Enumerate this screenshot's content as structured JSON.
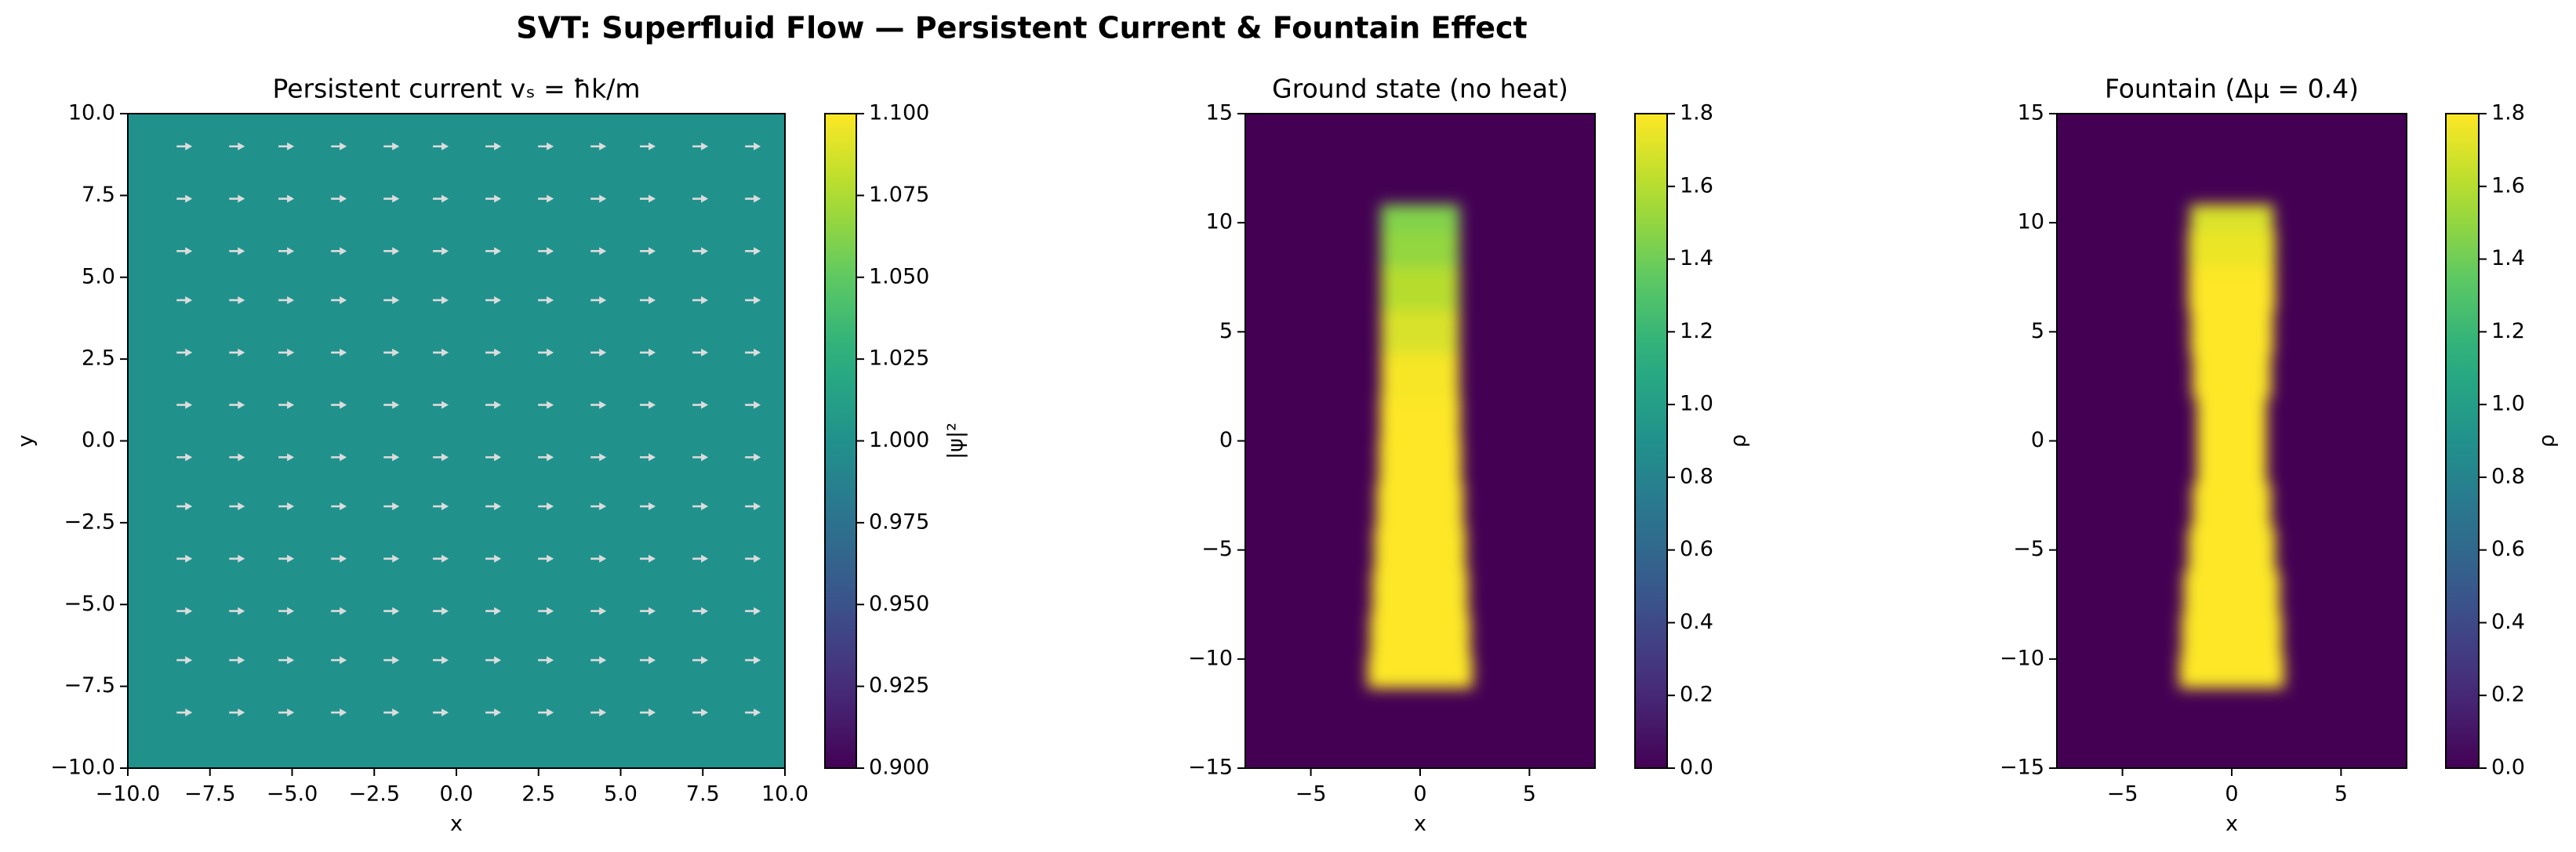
{
  "title": "SVT: Superfluid Flow — Persistent Current & Fountain Effect",
  "chart_data": [
    {
      "type": "heatmap",
      "title": "Persistent current  vₛ = ħk/m",
      "xlabel": "x",
      "ylabel": "y",
      "xlim": [
        -10,
        10
      ],
      "ylim": [
        -10,
        10
      ],
      "xticks": [
        {
          "value": -10,
          "label": "−10.0"
        },
        {
          "value": -7.5,
          "label": "−7.5"
        },
        {
          "value": -5,
          "label": "−5.0"
        },
        {
          "value": -2.5,
          "label": "−2.5"
        },
        {
          "value": 0,
          "label": "0.0"
        },
        {
          "value": 2.5,
          "label": "2.5"
        },
        {
          "value": 5,
          "label": "5.0"
        },
        {
          "value": 7.5,
          "label": "7.5"
        },
        {
          "value": 10,
          "label": "10.0"
        }
      ],
      "yticks": [
        {
          "value": -10,
          "label": "−10.0"
        },
        {
          "value": -7.5,
          "label": "−7.5"
        },
        {
          "value": -5,
          "label": "−5.0"
        },
        {
          "value": -2.5,
          "label": "−2.5"
        },
        {
          "value": 0,
          "label": "0.0"
        },
        {
          "value": 2.5,
          "label": "2.5"
        },
        {
          "value": 5,
          "label": "5.0"
        },
        {
          "value": 7.5,
          "label": "7.5"
        },
        {
          "value": 10,
          "label": "10.0"
        }
      ],
      "value": 1.0,
      "colormap": "viridis",
      "clim": [
        0.9,
        1.1
      ],
      "cticks": [
        {
          "value": 0.9,
          "label": "0.900"
        },
        {
          "value": 0.925,
          "label": "0.925"
        },
        {
          "value": 0.95,
          "label": "0.950"
        },
        {
          "value": 0.975,
          "label": "0.975"
        },
        {
          "value": 1.0,
          "label": "1.000"
        },
        {
          "value": 1.025,
          "label": "1.025"
        },
        {
          "value": 1.05,
          "label": "1.050"
        },
        {
          "value": 1.075,
          "label": "1.075"
        },
        {
          "value": 1.1,
          "label": "1.100"
        }
      ],
      "colorbar_label": "|ψ|²",
      "quiver": {
        "color": "#dcdcdc",
        "x": [
          -8.3,
          -6.7,
          -5.2,
          -3.6,
          -2.0,
          -0.5,
          1.1,
          2.7,
          4.3,
          5.8,
          7.4,
          9.0
        ],
        "y": [
          9.0,
          7.4,
          5.8,
          4.3,
          2.7,
          1.1,
          -0.5,
          -2.0,
          -3.6,
          -5.2,
          -6.7,
          -8.3
        ]
      }
    },
    {
      "type": "density",
      "title": "Ground state (no heat)",
      "xlabel": "x",
      "xlim": [
        -8,
        8
      ],
      "ylim": [
        -15,
        15
      ],
      "xticks": [
        {
          "value": -5,
          "label": "−5"
        },
        0,
        5
      ],
      "yticks": [
        {
          "value": -15,
          "label": "−15"
        },
        {
          "value": -10,
          "label": "−10"
        },
        {
          "value": -5,
          "label": "−5"
        },
        0,
        5,
        10,
        15
      ],
      "background": 0.0,
      "colormap": "viridis",
      "clim": [
        0,
        1.8
      ],
      "y": [
        -10.8,
        -9,
        -7,
        -5,
        -3,
        -1,
        1,
        3,
        5,
        7,
        9,
        10.3
      ],
      "values": [
        1.8,
        1.8,
        1.8,
        1.8,
        1.8,
        1.8,
        1.8,
        1.78,
        1.7,
        1.6,
        1.5,
        1.45
      ],
      "half_width": [
        2.4,
        2.3,
        2.2,
        2.1,
        2.0,
        1.9,
        1.85,
        1.8,
        1.8,
        1.8,
        1.8,
        1.8
      ],
      "cticks": [
        {
          "value": 0,
          "label": "0.0"
        },
        0.2,
        0.4,
        0.6,
        0.8,
        {
          "value": 1,
          "label": "1.0"
        },
        1.2,
        1.4,
        1.6,
        1.8
      ],
      "colorbar_label": "ρ"
    },
    {
      "type": "density",
      "title": "Fountain  (Δμ = 0.4)",
      "xlabel": "x",
      "xlim": [
        -8,
        8
      ],
      "ylim": [
        -15,
        15
      ],
      "xticks": [
        {
          "value": -5,
          "label": "−5"
        },
        0,
        5
      ],
      "yticks": [
        {
          "value": -15,
          "label": "−15"
        },
        {
          "value": -10,
          "label": "−10"
        },
        {
          "value": -5,
          "label": "−5"
        },
        0,
        5,
        10,
        15
      ],
      "background": 0.0,
      "colormap": "viridis",
      "clim": [
        0,
        1.8
      ],
      "y": [
        -10.8,
        -9,
        -7,
        -5,
        -3,
        -1,
        1,
        3,
        5,
        7,
        9,
        10.3
      ],
      "values": [
        1.8,
        1.8,
        1.8,
        1.8,
        1.8,
        1.8,
        1.8,
        1.8,
        1.8,
        1.8,
        1.75,
        1.7
      ],
      "half_width": [
        2.4,
        2.3,
        2.2,
        2.0,
        1.8,
        1.6,
        1.6,
        1.8,
        1.9,
        2.0,
        2.0,
        1.9
      ],
      "cticks": [
        {
          "value": 0,
          "label": "0.0"
        },
        0.2,
        0.4,
        0.6,
        0.8,
        {
          "value": 1,
          "label": "1.0"
        },
        1.2,
        1.4,
        1.6,
        1.8
      ],
      "colorbar_label": "ρ"
    }
  ]
}
